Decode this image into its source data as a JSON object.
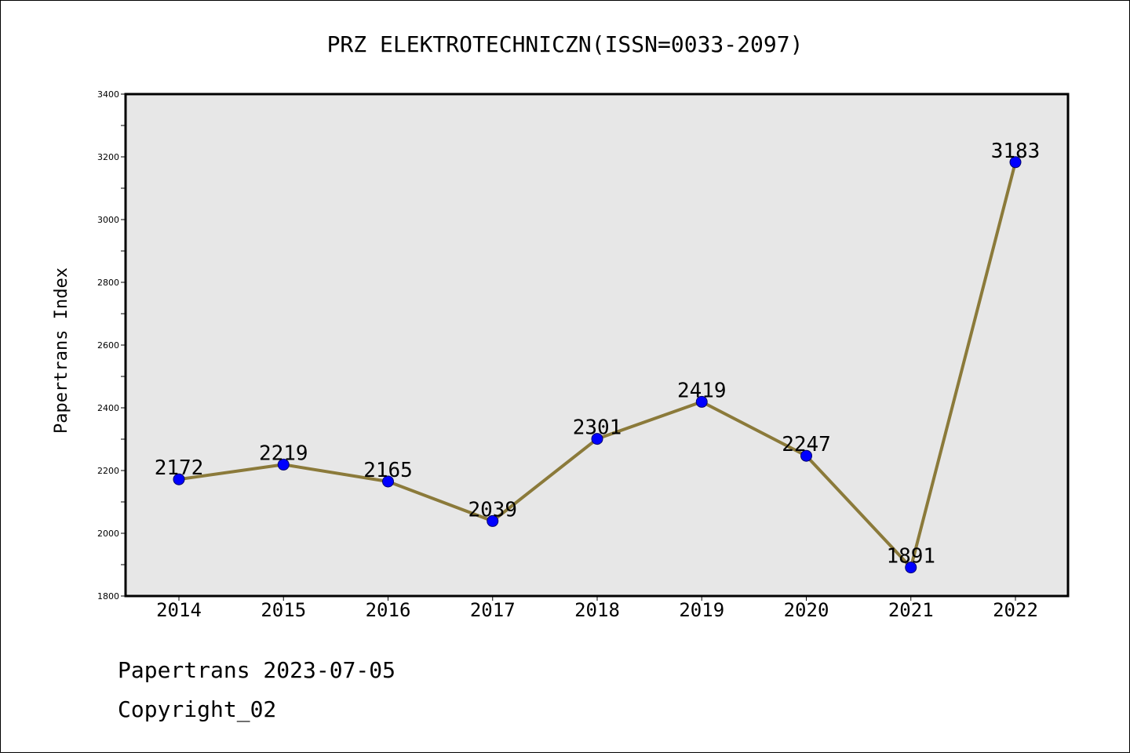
{
  "chart_data": {
    "type": "line",
    "title": "PRZ ELEKTROTECHNICZN(ISSN=0033-2097)",
    "xlabel": "",
    "ylabel": "Papertrans Index",
    "categories": [
      "2014",
      "2015",
      "2016",
      "2017",
      "2018",
      "2019",
      "2020",
      "2021",
      "2022"
    ],
    "values": [
      2172,
      2219,
      2165,
      2039,
      2301,
      2419,
      2247,
      1891,
      3183
    ],
    "data_labels": [
      "2172",
      "2219",
      "2165",
      "2039",
      "2301",
      "2419",
      "2247",
      "1891",
      "3183"
    ],
    "ylim": [
      1800,
      3400
    ],
    "yticks": [
      1800,
      2000,
      2200,
      2400,
      2600,
      2800,
      3000,
      3200,
      3400
    ],
    "ytick_labels": [
      "1800",
      "2000",
      "2200",
      "2400",
      "2600",
      "2800",
      "3000",
      "3200",
      "3400"
    ],
    "grid": false,
    "colors": {
      "plot_background": "#e7e7e7",
      "line": "#8b7a3a",
      "marker": "#0000ff"
    }
  },
  "footer": {
    "source": "Papertrans 2023-07-05",
    "copyright": "Copyright_02"
  }
}
